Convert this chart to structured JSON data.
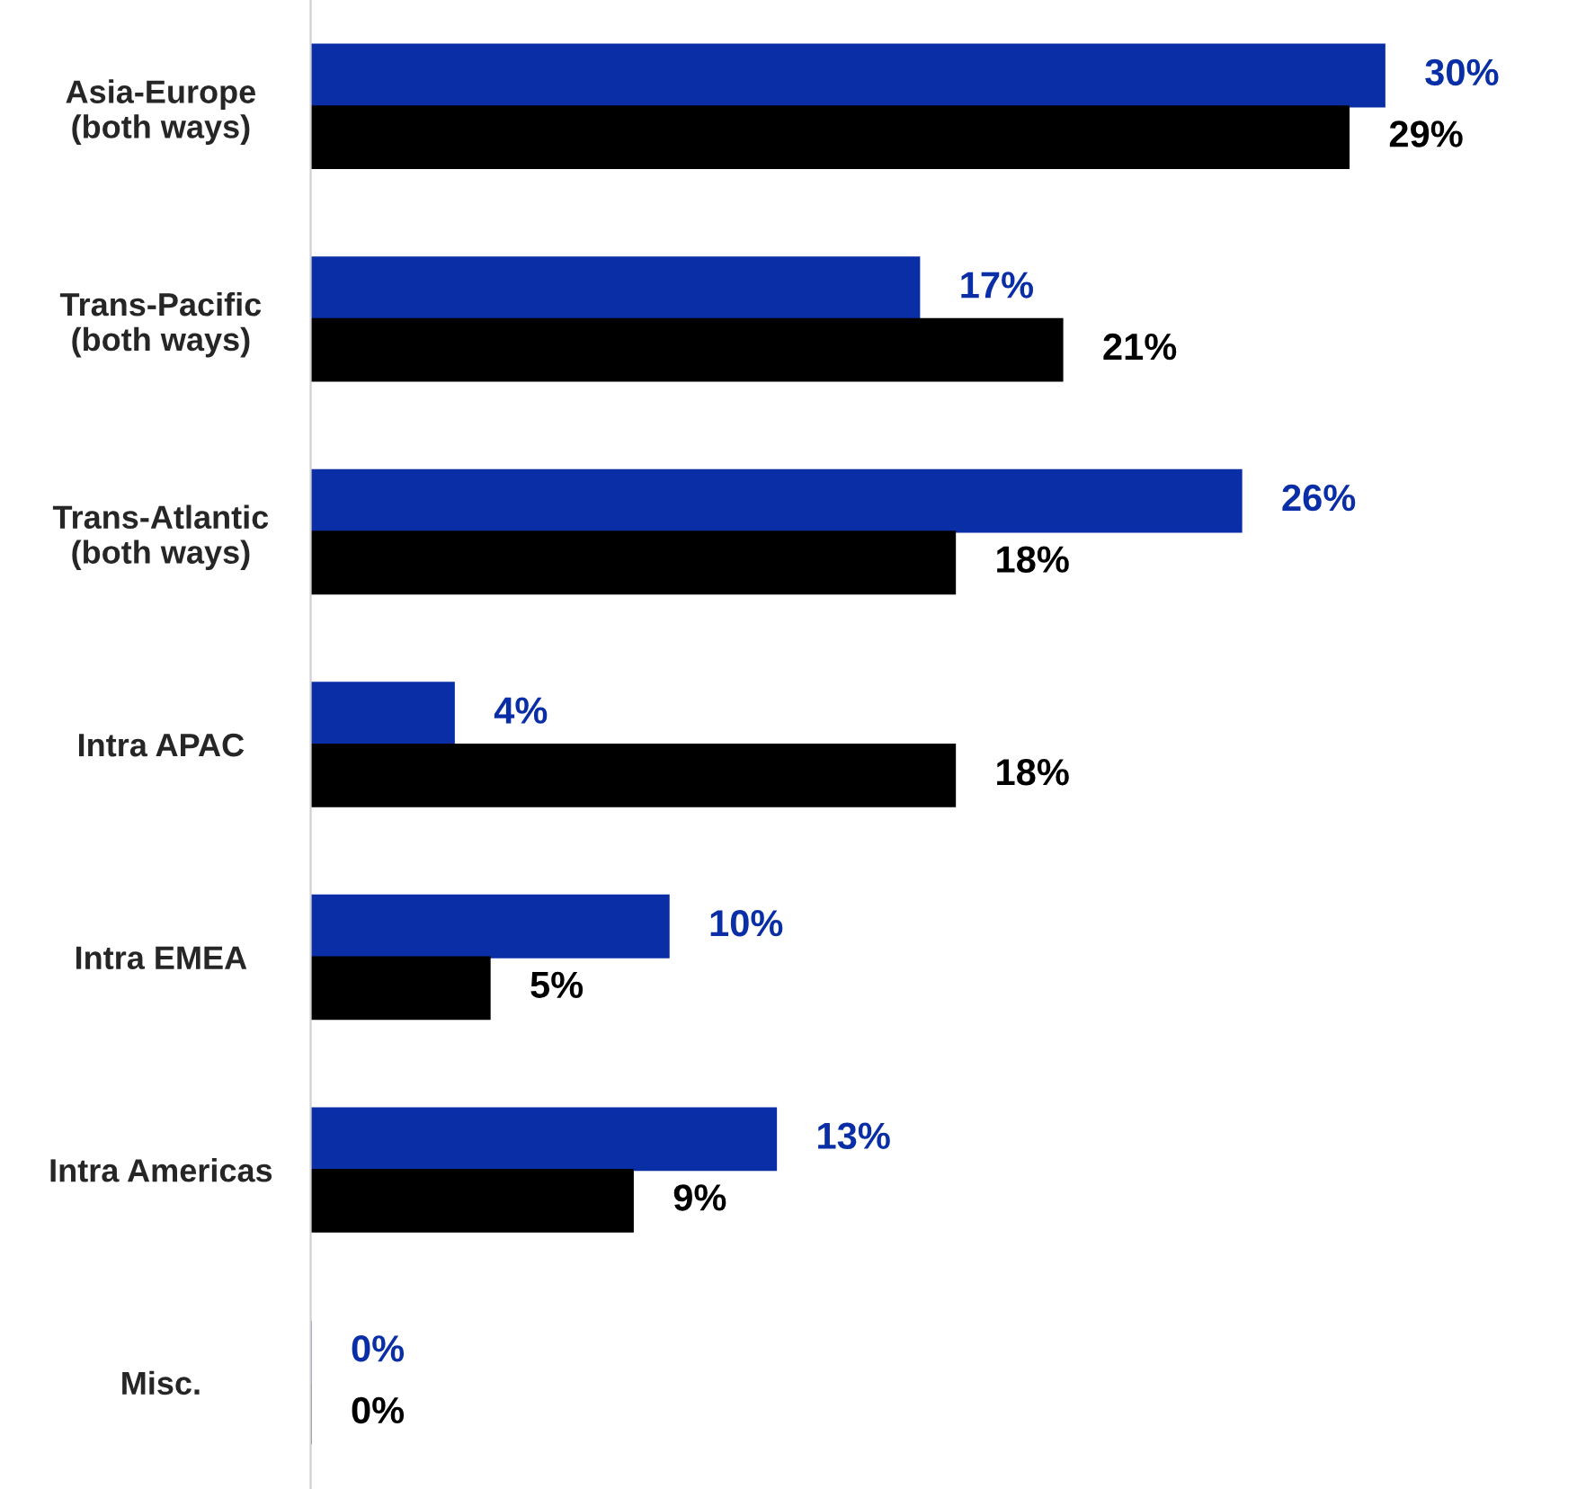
{
  "chart_data": {
    "type": "bar",
    "orientation": "horizontal",
    "categories": [
      "Asia-Europe\n(both ways)",
      "Trans-Pacific\n(both ways)",
      "Trans-Atlantic\n(both ways)",
      "Intra APAC",
      "Intra EMEA",
      "Intra Americas",
      "Misc."
    ],
    "series": [
      {
        "color": "#0a2ea6",
        "values": [
          30,
          17,
          26,
          4,
          10,
          13,
          0
        ],
        "value_labels": [
          "30%",
          "17%",
          "26%",
          "4%",
          "10%",
          "13%",
          "0%"
        ]
      },
      {
        "color": "#000000",
        "values": [
          29,
          21,
          18,
          18,
          5,
          9,
          0
        ],
        "value_labels": [
          "29%",
          "21%",
          "18%",
          "18%",
          "5%",
          "9%",
          "0%"
        ]
      }
    ],
    "grid": false,
    "legend": false
  }
}
